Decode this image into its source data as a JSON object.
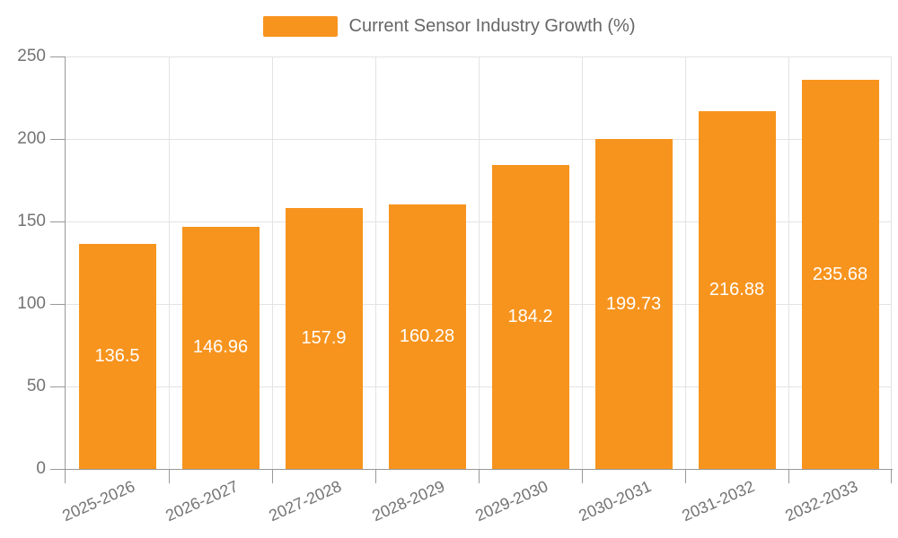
{
  "legend": {
    "label": "Current Sensor Industry Growth (%)"
  },
  "chart_data": {
    "type": "bar",
    "title": "",
    "categories": [
      "2025-2026",
      "2026-2027",
      "2027-2028",
      "2028-2029",
      "2029-2030",
      "2030-2031",
      "2031-2032",
      "2032-2033"
    ],
    "series": [
      {
        "name": "Current Sensor Industry Growth (%)",
        "values": [
          136.5,
          146.96,
          157.9,
          160.28,
          184.2,
          199.73,
          216.88,
          235.68
        ]
      }
    ],
    "data_labels": [
      "136.5",
      "146.96",
      "157.9",
      "160.28",
      "184.2",
      "199.73",
      "216.88",
      "235.68"
    ],
    "xlabel": "",
    "ylabel": "",
    "ylim": [
      0,
      250
    ],
    "yticks": [
      0,
      50,
      100,
      150,
      200,
      250
    ],
    "grid": true,
    "legend_position": "top-center",
    "x_label_rotation_deg": -24
  },
  "colors": {
    "bar": "#F7941E",
    "axis_line": "#999999",
    "grid_line": "#E3E3E3",
    "tick_label": "#737373",
    "legend_text": "#666666",
    "value_label": "#FFFFFF",
    "background": "#FFFFFF"
  }
}
